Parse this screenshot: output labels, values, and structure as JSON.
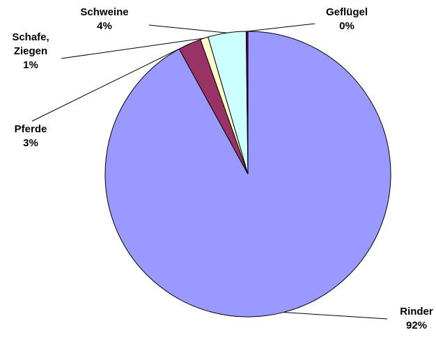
{
  "chart_data": {
    "type": "pie",
    "title": "",
    "legend": "none",
    "slices": [
      {
        "name": "Rinder",
        "value": 92,
        "label_value": "92%",
        "color": "#9999ff"
      },
      {
        "name": "Pferde",
        "value": 2.6,
        "label_value": "3%",
        "color": "#993366"
      },
      {
        "name": "Schafe, Ziegen",
        "name_lines": [
          "Schafe,",
          "Ziegen"
        ],
        "value": 0.9,
        "label_value": "1%",
        "color": "#ffffcc"
      },
      {
        "name": "Schweine",
        "value": 4.3,
        "label_value": "4%",
        "color": "#ccffff"
      },
      {
        "name": "Geflügel",
        "value": 0.2,
        "label_value": "0%",
        "color": "#660066"
      }
    ]
  }
}
